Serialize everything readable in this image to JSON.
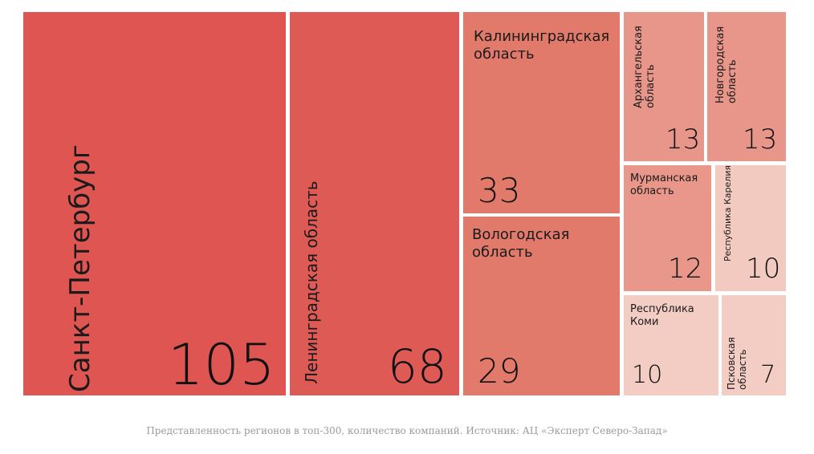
{
  "chart_data": {
    "type": "treemap",
    "caption": "Представленность регионов в топ-300, количество компаний. Источник: АЦ «Эксперт Северо-Запад»",
    "items": [
      {
        "name": "Санкт-Петербург",
        "value": 105,
        "value_label": "105",
        "color": "#DE5552"
      },
      {
        "name": "Ленинградская область",
        "value": 68,
        "value_label": "68",
        "color": "#DE5A55"
      },
      {
        "name": "Калининградская область",
        "value": 33,
        "value_label": "33",
        "color": "#E27A6C"
      },
      {
        "name": "Вологодская область",
        "value": 29,
        "value_label": "29",
        "color": "#E27A6C"
      },
      {
        "name": "Архангельская область",
        "value": 13,
        "value_label": "13",
        "color": "#E8968A"
      },
      {
        "name": "Новгородская область",
        "value": 13,
        "value_label": "13",
        "color": "#E8968A"
      },
      {
        "name": "Мурманская область",
        "value": 12,
        "value_label": "12",
        "color": "#E8978A"
      },
      {
        "name": "Республика Карелия",
        "value": 10,
        "value_label": "10",
        "color": "#F2CAC0"
      },
      {
        "name": "Республика Коми",
        "value": 10,
        "value_label": "10",
        "color": "#F3CDC3"
      },
      {
        "name": "Псковская область",
        "value": 7,
        "value_label": "7",
        "color": "#F3CDC3"
      }
    ]
  }
}
